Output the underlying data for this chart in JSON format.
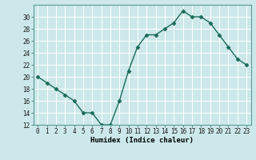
{
  "x": [
    0,
    1,
    2,
    3,
    4,
    5,
    6,
    7,
    8,
    9,
    10,
    11,
    12,
    13,
    14,
    15,
    16,
    17,
    18,
    19,
    20,
    21,
    22,
    23
  ],
  "y": [
    20,
    19,
    18,
    17,
    16,
    14,
    14,
    12,
    12,
    16,
    21,
    25,
    27,
    27,
    28,
    29,
    31,
    30,
    30,
    29,
    27,
    25,
    23,
    22
  ],
  "line_color": "#1a6b5a",
  "marker": "D",
  "marker_size": 2.5,
  "bg_color": "#cce8ea",
  "grid_color": "#b0d4d8",
  "xlabel": "Humidex (Indice chaleur)",
  "ylim": [
    12,
    32
  ],
  "yticks": [
    12,
    14,
    16,
    18,
    20,
    22,
    24,
    26,
    28,
    30
  ],
  "xticks": [
    0,
    1,
    2,
    3,
    4,
    5,
    6,
    7,
    8,
    9,
    10,
    11,
    12,
    13,
    14,
    15,
    16,
    17,
    18,
    19,
    20,
    21,
    22,
    23
  ],
  "xlabel_fontsize": 6.5,
  "tick_fontsize": 5.5,
  "line_width": 1.0
}
